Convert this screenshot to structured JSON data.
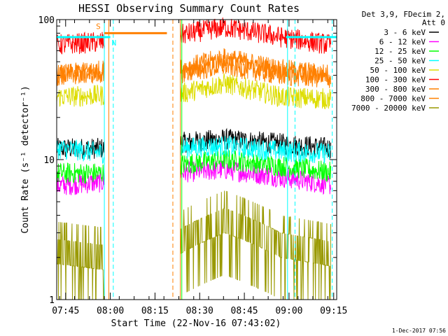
{
  "chart_data": {
    "type": "line",
    "title": "HESSI Observing Summary Count Rates",
    "xlabel": "Start Time (22-Nov-16 07:43:02)",
    "ylabel": "Count Rate (s⁻¹ detector⁻¹)",
    "y_scale": "log",
    "ylim": [
      1,
      100
    ],
    "y_ticks": [
      {
        "value": 1,
        "label": "1"
      },
      {
        "value": 10,
        "label": "10"
      },
      {
        "value": 100,
        "label": "100"
      }
    ],
    "x_range_minutes": [
      -1,
      93
    ],
    "x_ticks": [
      {
        "minute": 2,
        "label": "07:45"
      },
      {
        "minute": 17,
        "label": "08:00"
      },
      {
        "minute": 32,
        "label": "08:15"
      },
      {
        "minute": 47,
        "label": "08:30"
      },
      {
        "minute": 62,
        "label": "08:45"
      },
      {
        "minute": 77,
        "label": "09:00"
      },
      {
        "minute": 92,
        "label": "09:15"
      }
    ],
    "legend": {
      "position": "outside-right",
      "header": [
        "Det 3,9, FDecim 2,",
        "Att 0"
      ]
    },
    "gaps_minutes": [
      [
        15,
        40.5
      ],
      [
        91,
        93
      ]
    ],
    "series": [
      {
        "name": "3 - 6 keV",
        "color": "#000000",
        "levels": [
          12,
          12,
          13,
          14,
          13,
          12
        ]
      },
      {
        "name": "6 - 12 keV",
        "color": "#ff00ff",
        "levels": [
          6.5,
          7,
          8,
          8.5,
          7.5,
          6.5
        ]
      },
      {
        "name": "12 - 25 keV",
        "color": "#00ff00",
        "levels": [
          8,
          8,
          9,
          10,
          9,
          8
        ]
      },
      {
        "name": "25 - 50 keV",
        "color": "#00ffff",
        "levels": [
          12,
          11,
          12,
          12.5,
          11.5,
          11
        ]
      },
      {
        "name": "50 - 100 keV",
        "color": "#dddd00",
        "levels": [
          28,
          29,
          28,
          35,
          28,
          27
        ]
      },
      {
        "name": "100 - 300 keV",
        "color": "#ff0000",
        "levels": [
          66,
          70,
          75,
          88,
          75,
          65
        ]
      },
      {
        "name": "300 - 800 keV",
        "color": "#ff8000",
        "levels": [
          40,
          44,
          42,
          53,
          44,
          40
        ]
      },
      {
        "name": "800 - 7000 keV",
        "color": "#ff8000",
        "levels": [
          40,
          42,
          40,
          47,
          40,
          38
        ]
      },
      {
        "name": "7000 - 20000 keV",
        "color": "#999900",
        "levels": [
          1.8,
          1.6,
          1.9,
          3,
          2,
          1.7
        ]
      }
    ],
    "state_lines": [
      {
        "label": "S",
        "color": "#ff8000",
        "x_minutes": [
          15,
          36
        ],
        "y_value": 80
      },
      {
        "label": "N",
        "color": "#00ffff",
        "x_minutes": [
          -1,
          17
        ],
        "y_value": 75
      },
      {
        "label": "",
        "color": "#00ffff",
        "x_minutes": [
          76,
          93
        ],
        "y_value": 75
      }
    ],
    "vertical_markers": [
      {
        "minute": -1,
        "color": "#00ffff",
        "style": "solid"
      },
      {
        "minute": 15,
        "color": "#00ffff",
        "style": "solid"
      },
      {
        "minute": 16.5,
        "color": "#ff8000",
        "style": "solid"
      },
      {
        "minute": 18,
        "color": "#00ffff",
        "style": "dashed"
      },
      {
        "minute": 38,
        "color": "#ff8000",
        "style": "dashed"
      },
      {
        "minute": 40.5,
        "color": "#ff8000",
        "style": "solid"
      },
      {
        "minute": 41,
        "color": "#00ff00",
        "style": "solid"
      },
      {
        "minute": 76.5,
        "color": "#00ffff",
        "style": "solid"
      },
      {
        "minute": 79,
        "color": "#00ffff",
        "style": "dashed"
      },
      {
        "minute": 91.5,
        "color": "#00ffff",
        "style": "dashed"
      }
    ],
    "timestamp": "1-Dec-2017 07:56"
  }
}
